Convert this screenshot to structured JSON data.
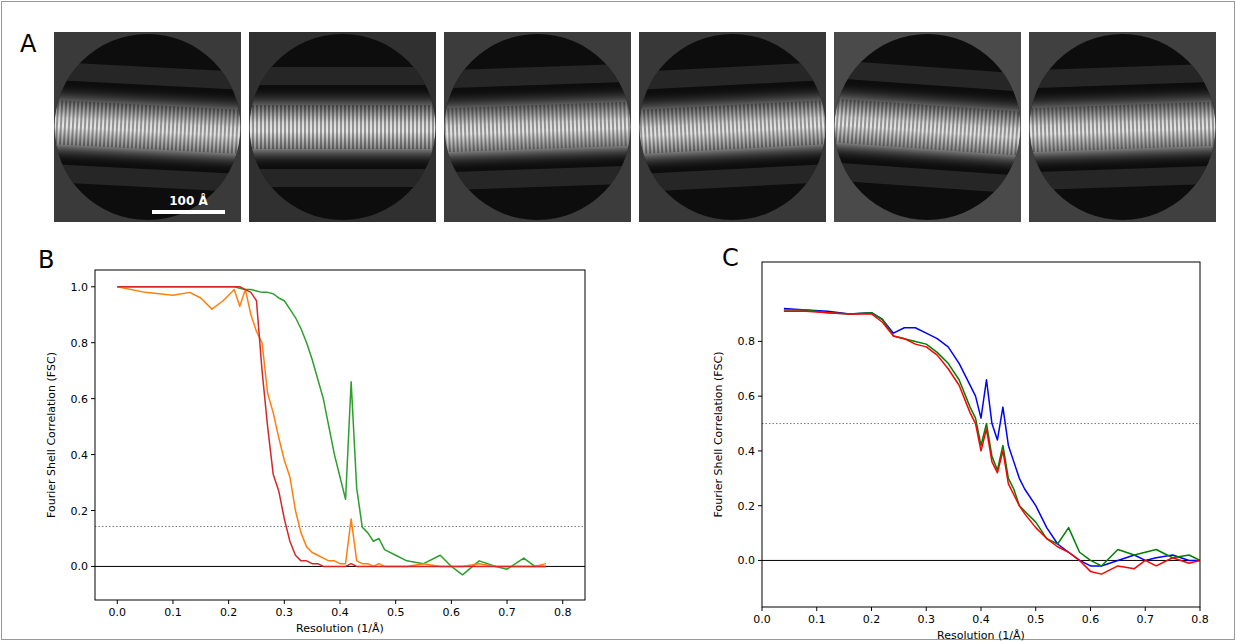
{
  "panel_a": {
    "label": "A",
    "scale_bar_label": "100 Å",
    "scale_bar_value": 100
  },
  "chart_data": [
    {
      "type": "line",
      "label": "B",
      "x_label": "Resolution (1/Å)",
      "y_label": "Fourier Shell Correlation (FSC)",
      "x": [
        0,
        0.05,
        0.1,
        0.13,
        0.15,
        0.17,
        0.19,
        0.2,
        0.21,
        0.22,
        0.23,
        0.24,
        0.25,
        0.26,
        0.27,
        0.28,
        0.29,
        0.3,
        0.31,
        0.32,
        0.33,
        0.34,
        0.35,
        0.36,
        0.37,
        0.38,
        0.39,
        0.4,
        0.41,
        0.42,
        0.43,
        0.44,
        0.45,
        0.46,
        0.47,
        0.48,
        0.5,
        0.52,
        0.55,
        0.58,
        0.6,
        0.62,
        0.65,
        0.68,
        0.7,
        0.73,
        0.75,
        0.77
      ],
      "series": [
        {
          "color": "#2ca02c",
          "values": [
            1.0,
            1.0,
            1.0,
            1.0,
            1.0,
            1.0,
            1.0,
            1.0,
            1.0,
            0.995,
            0.99,
            0.99,
            0.985,
            0.98,
            0.98,
            0.975,
            0.96,
            0.95,
            0.92,
            0.89,
            0.85,
            0.8,
            0.74,
            0.67,
            0.6,
            0.5,
            0.4,
            0.32,
            0.24,
            0.66,
            0.28,
            0.14,
            0.12,
            0.09,
            0.1,
            0.06,
            0.04,
            0.02,
            0.01,
            0.04,
            0.0,
            -0.03,
            0.02,
            0.0,
            -0.01,
            0.03,
            0.0,
            0.0
          ]
        },
        {
          "color": "#ff7f0e",
          "values": [
            1.0,
            0.98,
            0.97,
            0.98,
            0.96,
            0.92,
            0.95,
            0.97,
            0.99,
            0.93,
            0.99,
            0.9,
            0.84,
            0.8,
            0.62,
            0.55,
            0.46,
            0.38,
            0.32,
            0.2,
            0.12,
            0.07,
            0.05,
            0.04,
            0.03,
            0.02,
            0.02,
            0.01,
            0.01,
            0.17,
            0.02,
            0.01,
            0.01,
            0.0,
            0.01,
            0.0,
            0.0,
            0.0,
            0.01,
            0.0,
            0.0,
            0.0,
            0.01,
            0.0,
            0.0,
            0.0,
            0.0,
            0.01
          ]
        },
        {
          "color": "#d62728",
          "values": [
            1.0,
            1.0,
            1.0,
            1.0,
            1.0,
            1.0,
            1.0,
            1.0,
            1.0,
            1.0,
            0.99,
            0.98,
            0.95,
            0.7,
            0.5,
            0.33,
            0.27,
            0.17,
            0.09,
            0.04,
            0.02,
            0.02,
            0.01,
            0.01,
            0.0,
            0.0,
            0.0,
            0.0,
            0.0,
            0.01,
            0.0,
            0.0,
            0.0,
            0.0,
            0.0,
            0.0,
            0.0,
            0.0,
            0.0,
            0.0,
            0.0,
            0.0,
            0.0,
            0.0,
            0.0,
            0.0,
            0.0,
            0.0
          ]
        }
      ],
      "xlim": [
        -0.04,
        0.84
      ],
      "ylim": [
        -0.12,
        1.06
      ],
      "xticks": [
        {
          "value": 0,
          "label": "0.0"
        },
        {
          "value": 0.1,
          "label": "0.1"
        },
        {
          "value": 0.2,
          "label": "0.2"
        },
        {
          "value": 0.3,
          "label": "0.3"
        },
        {
          "value": 0.4,
          "label": "0.4"
        },
        {
          "value": 0.5,
          "label": "0.5"
        },
        {
          "value": 0.6,
          "label": "0.6"
        },
        {
          "value": 0.7,
          "label": "0.7"
        },
        {
          "value": 0.8,
          "label": "0.8"
        }
      ],
      "yticks": [
        {
          "value": 0,
          "label": "0.0"
        },
        {
          "value": 0.2,
          "label": "0.2"
        },
        {
          "value": 0.4,
          "label": "0.4"
        },
        {
          "value": 0.6,
          "label": "0.6"
        },
        {
          "value": 0.8,
          "label": "0.8"
        },
        {
          "value": 1,
          "label": "1.0"
        }
      ],
      "threshold": 0.143,
      "baseline": 0,
      "grid": false
    },
    {
      "type": "line",
      "label": "C",
      "x_label": "Resolution (1/Å)",
      "y_label": "Fourier Shell Correlation (FSC)",
      "x": [
        0.04,
        0.08,
        0.12,
        0.16,
        0.2,
        0.22,
        0.24,
        0.26,
        0.28,
        0.3,
        0.32,
        0.34,
        0.36,
        0.38,
        0.39,
        0.4,
        0.41,
        0.42,
        0.43,
        0.44,
        0.45,
        0.46,
        0.47,
        0.48,
        0.5,
        0.52,
        0.54,
        0.56,
        0.58,
        0.6,
        0.62,
        0.65,
        0.68,
        0.7,
        0.72,
        0.75,
        0.78,
        0.8
      ],
      "series": [
        {
          "color": "#0000ff",
          "values": [
            0.92,
            0.915,
            0.91,
            0.9,
            0.905,
            0.88,
            0.83,
            0.85,
            0.85,
            0.83,
            0.81,
            0.78,
            0.72,
            0.64,
            0.6,
            0.52,
            0.66,
            0.5,
            0.44,
            0.56,
            0.42,
            0.36,
            0.3,
            0.26,
            0.2,
            0.12,
            0.06,
            0.03,
            0.0,
            -0.02,
            -0.02,
            0.0,
            0.02,
            0.0,
            0.01,
            0.02,
            0.0,
            0.0
          ]
        },
        {
          "color": "#008000",
          "values": [
            0.915,
            0.915,
            0.905,
            0.9,
            0.905,
            0.88,
            0.82,
            0.81,
            0.8,
            0.79,
            0.76,
            0.72,
            0.66,
            0.56,
            0.52,
            0.42,
            0.5,
            0.38,
            0.33,
            0.42,
            0.3,
            0.26,
            0.2,
            0.18,
            0.14,
            0.08,
            0.06,
            0.12,
            0.03,
            0.0,
            -0.02,
            0.04,
            0.02,
            0.03,
            0.04,
            0.01,
            0.02,
            0.0
          ]
        },
        {
          "color": "#ff0000",
          "values": [
            0.91,
            0.91,
            0.905,
            0.9,
            0.9,
            0.87,
            0.82,
            0.81,
            0.79,
            0.78,
            0.75,
            0.7,
            0.64,
            0.54,
            0.5,
            0.4,
            0.48,
            0.36,
            0.32,
            0.4,
            0.28,
            0.24,
            0.2,
            0.17,
            0.12,
            0.08,
            0.05,
            0.03,
            0.0,
            -0.04,
            -0.05,
            -0.02,
            -0.03,
            0.0,
            -0.02,
            0.01,
            -0.01,
            0.0
          ]
        }
      ],
      "xlim": [
        0,
        0.8
      ],
      "ylim": [
        -0.17,
        1.09
      ],
      "xticks": [
        {
          "value": 0,
          "label": "0.0"
        },
        {
          "value": 0.1,
          "label": "0.1"
        },
        {
          "value": 0.2,
          "label": "0.2"
        },
        {
          "value": 0.3,
          "label": "0.3"
        },
        {
          "value": 0.4,
          "label": "0.4"
        },
        {
          "value": 0.5,
          "label": "0.5"
        },
        {
          "value": 0.6,
          "label": "0.6"
        },
        {
          "value": 0.7,
          "label": "0.7"
        },
        {
          "value": 0.8,
          "label": "0.8"
        }
      ],
      "yticks": [
        {
          "value": 0,
          "label": "0.0"
        },
        {
          "value": 0.2,
          "label": "0.2"
        },
        {
          "value": 0.4,
          "label": "0.4"
        },
        {
          "value": 0.6,
          "label": "0.6"
        },
        {
          "value": 0.8,
          "label": "0.8"
        }
      ],
      "threshold": 0.5,
      "baseline": 0,
      "grid": false
    }
  ]
}
